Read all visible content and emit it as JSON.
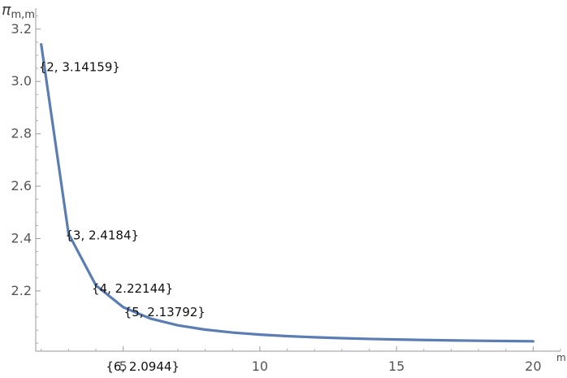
{
  "chart_data": {
    "type": "line",
    "title": "",
    "xlabel": "m",
    "ylabel": {
      "main": "π",
      "subscript": "m,m"
    },
    "xlim": [
      1.8,
      21
    ],
    "ylim": [
      1.97,
      3.28
    ],
    "x_ticks": [
      5,
      10,
      15,
      20
    ],
    "x_tick_labels": [
      "5",
      "10",
      "15",
      "20"
    ],
    "y_ticks": [
      2.2,
      2.4,
      2.6,
      2.8,
      3.0,
      3.2
    ],
    "y_tick_labels": [
      "2.2",
      "2.4",
      "2.6",
      "2.8",
      "3.0",
      "3.2"
    ],
    "grid": false,
    "series": [
      {
        "color": "#5b7db1",
        "x": [
          2,
          3,
          4,
          5,
          6,
          7,
          8,
          9,
          10,
          11,
          12,
          13,
          14,
          15,
          16,
          17,
          18,
          19,
          20
        ],
        "values": [
          3.14159,
          2.4184,
          2.22144,
          2.13792,
          2.0944,
          2.0687,
          2.0523,
          2.0412,
          2.0333,
          2.0275,
          2.0231,
          2.0196,
          2.0168,
          2.0146,
          2.0127,
          2.0111,
          2.0098,
          2.0087,
          2.0078
        ]
      }
    ],
    "annotations": [
      {
        "x": 2,
        "y": 3.14159,
        "text": "{2, 3.14159}"
      },
      {
        "x": 3,
        "y": 2.4184,
        "text": "{3, 2.4184}"
      },
      {
        "x": 4,
        "y": 2.22144,
        "text": "{4, 2.22144}"
      },
      {
        "x": 5,
        "y": 2.13792,
        "text": "{5, 2.13792}"
      },
      {
        "x": 6,
        "y": 2.0944,
        "text": "{6, 2.0944}"
      }
    ]
  }
}
